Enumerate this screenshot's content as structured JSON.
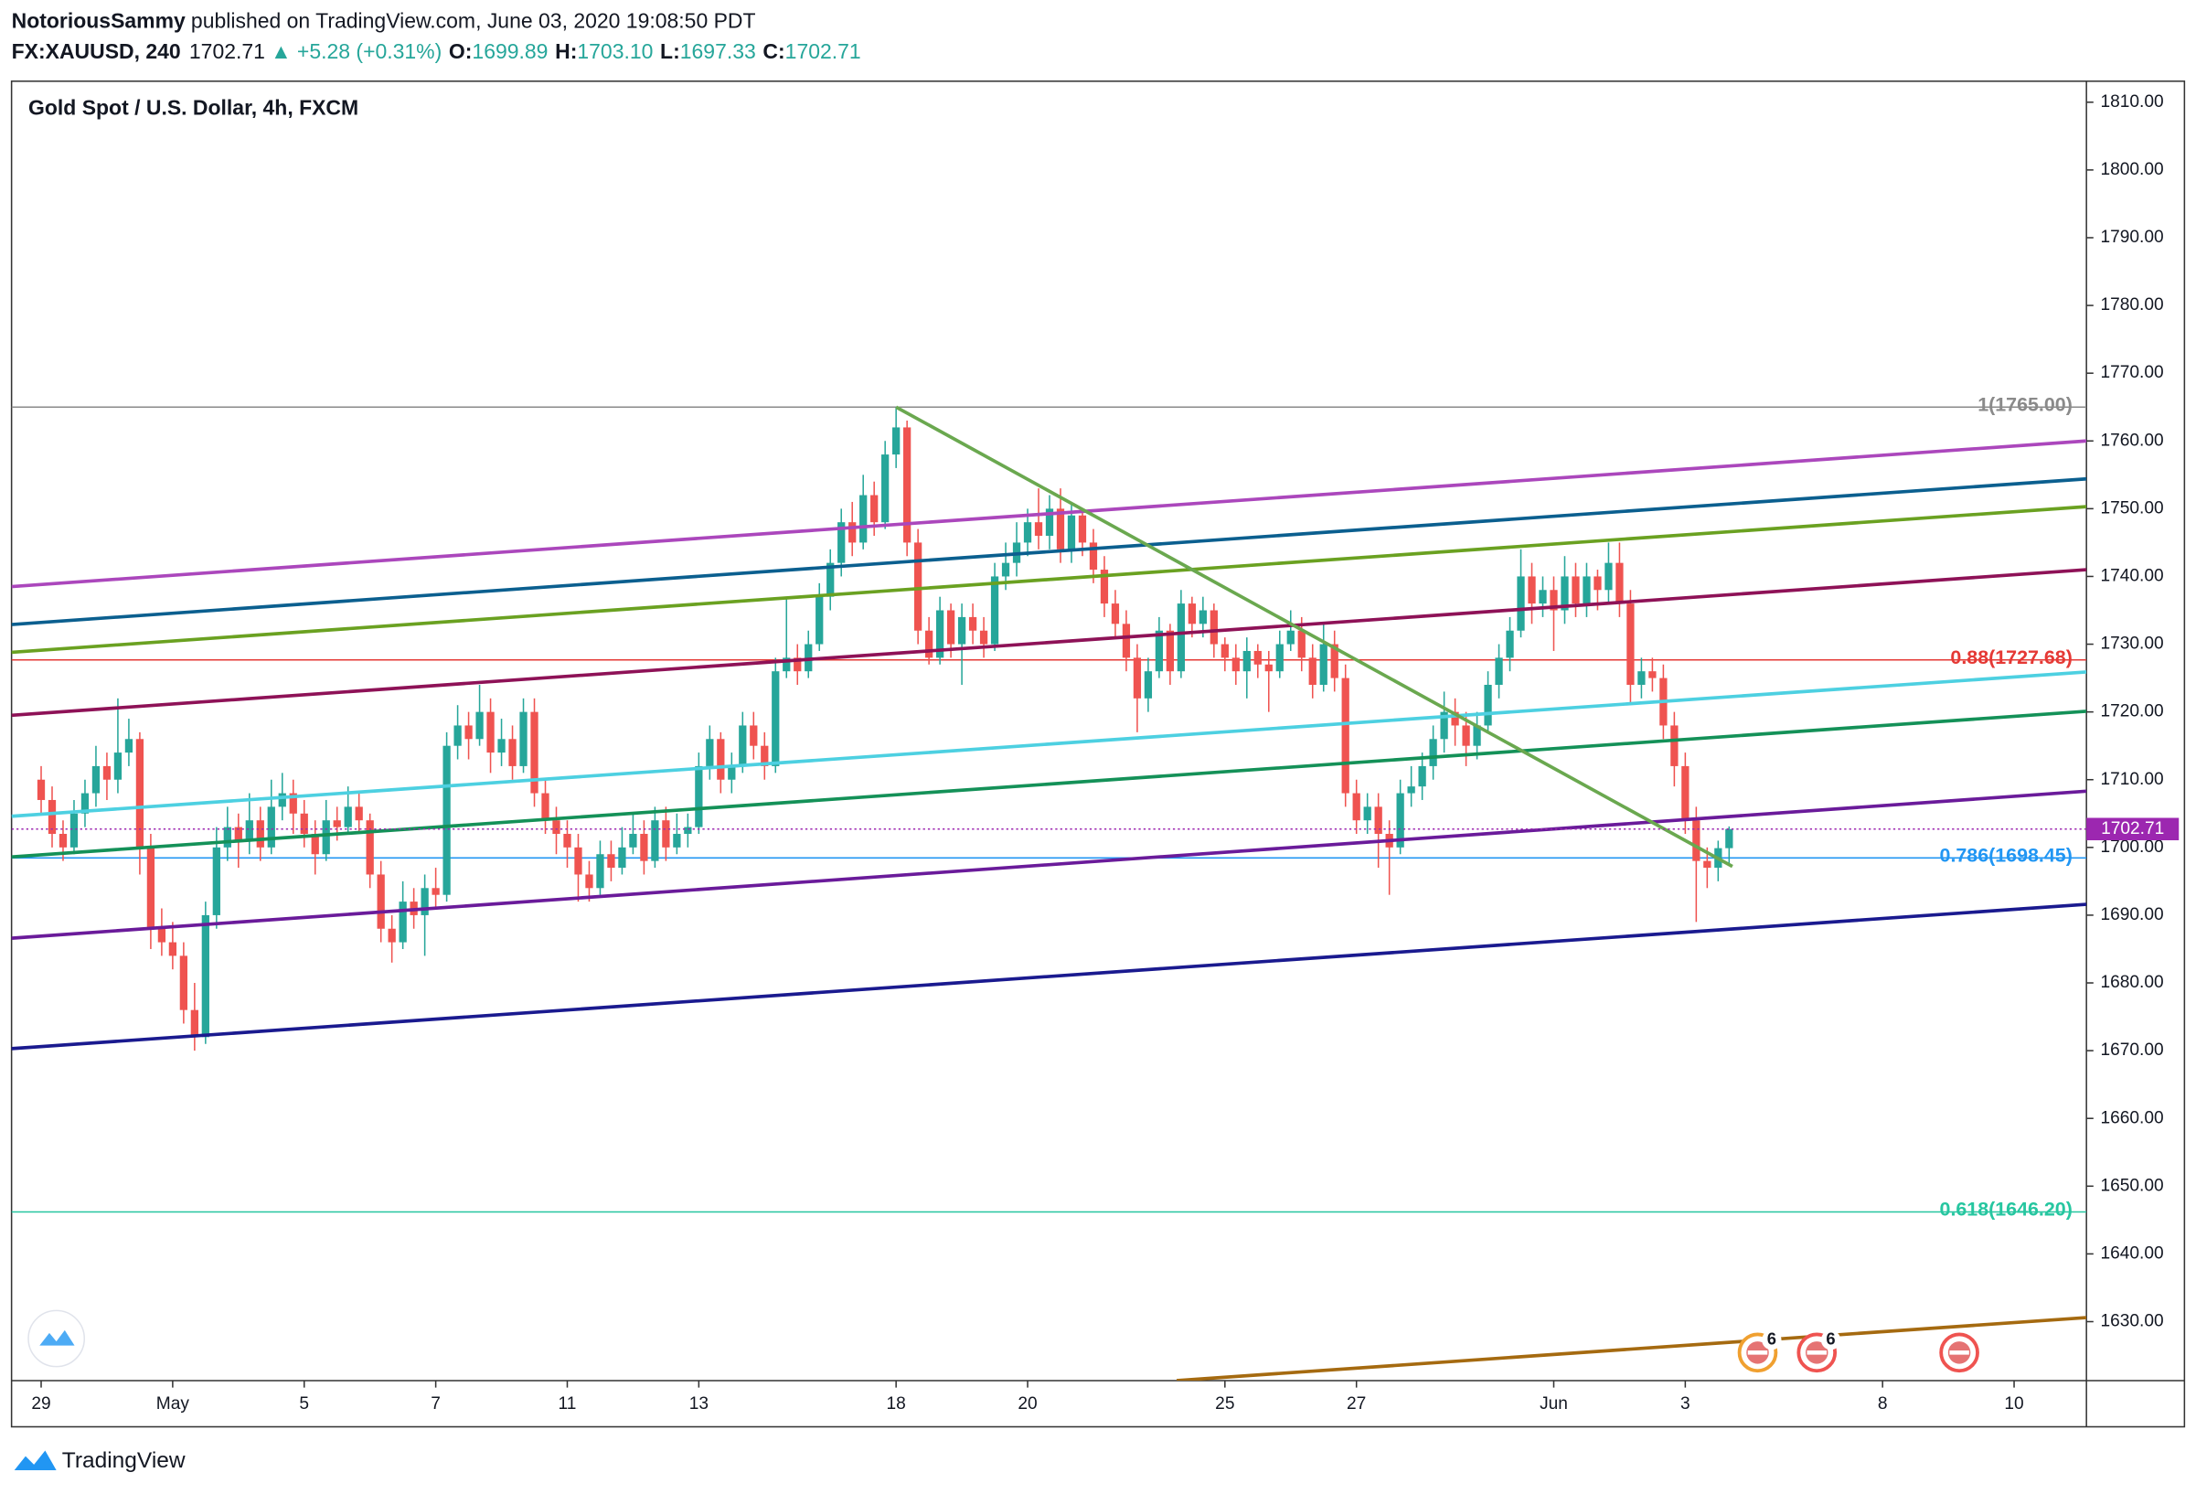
{
  "header": {
    "author": "NotoriousSammy",
    "published": "published on TradingView.com, June 03, 2020 19:08:50 PDT",
    "symbol": "FX:XAUUSD, 240",
    "last": "1702.71",
    "arrow": "▲",
    "change": "+5.28 (+0.31%)",
    "ohlc": [
      {
        "key": "O:",
        "value": "1699.89"
      },
      {
        "key": "H:",
        "value": "1703.10"
      },
      {
        "key": "L:",
        "value": "1697.33"
      },
      {
        "key": "C:",
        "value": "1702.71"
      }
    ]
  },
  "footer": {
    "brand": "TradingView"
  },
  "chart_data": {
    "type": "candlestick",
    "title": "Gold Spot / U.S. Dollar, 4h, FXCM",
    "up_color": "#26a69a",
    "down_color": "#ef5350",
    "grid": false,
    "xlim": [
      -2.7,
      186.6
    ],
    "ylim": [
      1621.3,
      1813.1
    ],
    "xticks": [
      {
        "value": 0,
        "label": "29"
      },
      {
        "value": 12,
        "label": "May"
      },
      {
        "value": 24,
        "label": "5"
      },
      {
        "value": 36,
        "label": "7"
      },
      {
        "value": 48,
        "label": "11"
      },
      {
        "value": 60,
        "label": "13"
      },
      {
        "value": 78,
        "label": "18"
      },
      {
        "value": 90,
        "label": "20"
      },
      {
        "value": 108,
        "label": "25"
      },
      {
        "value": 120,
        "label": "27"
      },
      {
        "value": 138,
        "label": "Jun"
      },
      {
        "value": 150,
        "label": "3"
      },
      {
        "value": 168,
        "label": "8"
      },
      {
        "value": 180,
        "label": "10"
      }
    ],
    "yticks": [
      {
        "value": 1630,
        "label": "1630.00"
      },
      {
        "value": 1640,
        "label": "1640.00"
      },
      {
        "value": 1650,
        "label": "1650.00"
      },
      {
        "value": 1660,
        "label": "1660.00"
      },
      {
        "value": 1670,
        "label": "1670.00"
      },
      {
        "value": 1680,
        "label": "1680.00"
      },
      {
        "value": 1690,
        "label": "1690.00"
      },
      {
        "value": 1700,
        "label": "1700.00"
      },
      {
        "value": 1710,
        "label": "1710.00"
      },
      {
        "value": 1720,
        "label": "1720.00"
      },
      {
        "value": 1730,
        "label": "1730.00"
      },
      {
        "value": 1740,
        "label": "1740.00"
      },
      {
        "value": 1750,
        "label": "1750.00"
      },
      {
        "value": 1760,
        "label": "1760.00"
      },
      {
        "value": 1770,
        "label": "1770.00"
      },
      {
        "value": 1780,
        "label": "1780.00"
      },
      {
        "value": 1790,
        "label": "1790.00"
      },
      {
        "value": 1800,
        "label": "1800.00"
      },
      {
        "value": 1810,
        "label": "1810.00"
      }
    ],
    "current_price": {
      "value": 1702.71,
      "color": "#9c27b0"
    },
    "candles": [
      [
        1710,
        1712,
        1705,
        1707
      ],
      [
        1707,
        1709,
        1700,
        1702
      ],
      [
        1702,
        1704,
        1698,
        1700
      ],
      [
        1700,
        1707,
        1699,
        1705
      ],
      [
        1705,
        1710,
        1703,
        1708
      ],
      [
        1708,
        1715,
        1706,
        1712
      ],
      [
        1712,
        1714,
        1707,
        1710
      ],
      [
        1710,
        1722,
        1708,
        1714
      ],
      [
        1714,
        1719,
        1712,
        1716
      ],
      [
        1716,
        1717,
        1696,
        1700
      ],
      [
        1700,
        1702,
        1685,
        1688
      ],
      [
        1688,
        1691,
        1684,
        1686
      ],
      [
        1686,
        1689,
        1682,
        1684
      ],
      [
        1684,
        1686,
        1674,
        1676
      ],
      [
        1676,
        1680,
        1670,
        1672
      ],
      [
        1672,
        1692,
        1671,
        1690
      ],
      [
        1690,
        1703,
        1688,
        1700
      ],
      [
        1700,
        1706,
        1698,
        1703
      ],
      [
        1703,
        1705,
        1697,
        1701
      ],
      [
        1701,
        1708,
        1699,
        1704
      ],
      [
        1704,
        1706,
        1698,
        1700
      ],
      [
        1700,
        1710,
        1699,
        1706
      ],
      [
        1706,
        1711,
        1704,
        1708
      ],
      [
        1708,
        1710,
        1702,
        1705
      ],
      [
        1705,
        1707,
        1700,
        1702
      ],
      [
        1702,
        1704,
        1696,
        1699
      ],
      [
        1699,
        1707,
        1698,
        1704
      ],
      [
        1704,
        1706,
        1701,
        1703
      ],
      [
        1703,
        1709,
        1702,
        1706
      ],
      [
        1706,
        1708,
        1702,
        1704
      ],
      [
        1704,
        1705,
        1694,
        1696
      ],
      [
        1696,
        1698,
        1686,
        1688
      ],
      [
        1688,
        1690,
        1683,
        1686
      ],
      [
        1686,
        1695,
        1685,
        1692
      ],
      [
        1692,
        1694,
        1688,
        1690
      ],
      [
        1690,
        1696,
        1684,
        1694
      ],
      [
        1694,
        1697,
        1691,
        1693
      ],
      [
        1693,
        1717,
        1692,
        1715
      ],
      [
        1715,
        1721,
        1713,
        1718
      ],
      [
        1718,
        1720,
        1713,
        1716
      ],
      [
        1716,
        1724,
        1715,
        1720
      ],
      [
        1720,
        1722,
        1711,
        1714
      ],
      [
        1714,
        1719,
        1712,
        1716
      ],
      [
        1716,
        1718,
        1710,
        1712
      ],
      [
        1712,
        1722,
        1711,
        1720
      ],
      [
        1720,
        1722,
        1706,
        1708
      ],
      [
        1708,
        1710,
        1702,
        1704
      ],
      [
        1704,
        1706,
        1699,
        1702
      ],
      [
        1702,
        1704,
        1697,
        1700
      ],
      [
        1700,
        1702,
        1692,
        1696
      ],
      [
        1696,
        1698,
        1692,
        1694
      ],
      [
        1694,
        1701,
        1693,
        1699
      ],
      [
        1699,
        1701,
        1695,
        1697
      ],
      [
        1697,
        1703,
        1696,
        1700
      ],
      [
        1700,
        1705,
        1699,
        1702
      ],
      [
        1702,
        1704,
        1696,
        1698
      ],
      [
        1698,
        1706,
        1697,
        1704
      ],
      [
        1704,
        1706,
        1698,
        1700
      ],
      [
        1700,
        1705,
        1699,
        1702
      ],
      [
        1702,
        1705,
        1700,
        1703
      ],
      [
        1703,
        1714,
        1702,
        1712
      ],
      [
        1712,
        1718,
        1710,
        1716
      ],
      [
        1716,
        1717,
        1708,
        1710
      ],
      [
        1710,
        1714,
        1708,
        1712
      ],
      [
        1712,
        1720,
        1711,
        1718
      ],
      [
        1718,
        1720,
        1713,
        1715
      ],
      [
        1715,
        1717,
        1710,
        1712
      ],
      [
        1712,
        1728,
        1711,
        1726
      ],
      [
        1726,
        1737,
        1725,
        1728
      ],
      [
        1728,
        1730,
        1724,
        1726
      ],
      [
        1726,
        1732,
        1725,
        1730
      ],
      [
        1730,
        1739,
        1729,
        1737
      ],
      [
        1737,
        1744,
        1735,
        1742
      ],
      [
        1742,
        1750,
        1740,
        1748
      ],
      [
        1748,
        1751,
        1743,
        1745
      ],
      [
        1745,
        1755,
        1744,
        1752
      ],
      [
        1752,
        1754,
        1746,
        1748
      ],
      [
        1748,
        1760,
        1747,
        1758
      ],
      [
        1758,
        1765,
        1756,
        1762
      ],
      [
        1762,
        1763,
        1743,
        1745
      ],
      [
        1745,
        1747,
        1730,
        1732
      ],
      [
        1732,
        1734,
        1727,
        1728
      ],
      [
        1728,
        1737,
        1727,
        1735
      ],
      [
        1735,
        1736,
        1728,
        1730
      ],
      [
        1730,
        1736,
        1724,
        1734
      ],
      [
        1734,
        1736,
        1730,
        1732
      ],
      [
        1732,
        1734,
        1728,
        1730
      ],
      [
        1730,
        1742,
        1729,
        1740
      ],
      [
        1740,
        1745,
        1738,
        1742
      ],
      [
        1742,
        1748,
        1740,
        1745
      ],
      [
        1745,
        1750,
        1743,
        1748
      ],
      [
        1748,
        1753,
        1744,
        1746
      ],
      [
        1746,
        1752,
        1744,
        1750
      ],
      [
        1750,
        1753,
        1742,
        1744
      ],
      [
        1744,
        1751,
        1742,
        1749
      ],
      [
        1749,
        1750,
        1743,
        1745
      ],
      [
        1745,
        1747,
        1739,
        1741
      ],
      [
        1741,
        1743,
        1734,
        1736
      ],
      [
        1736,
        1738,
        1731,
        1733
      ],
      [
        1733,
        1735,
        1726,
        1728
      ],
      [
        1728,
        1730,
        1717,
        1722
      ],
      [
        1722,
        1728,
        1720,
        1726
      ],
      [
        1726,
        1734,
        1725,
        1732
      ],
      [
        1732,
        1733,
        1724,
        1726
      ],
      [
        1726,
        1738,
        1725,
        1736
      ],
      [
        1736,
        1737,
        1731,
        1733
      ],
      [
        1733,
        1737,
        1731,
        1735
      ],
      [
        1735,
        1736,
        1728,
        1730
      ],
      [
        1730,
        1731,
        1726,
        1728
      ],
      [
        1728,
        1730,
        1724,
        1726
      ],
      [
        1726,
        1731,
        1722,
        1729
      ],
      [
        1729,
        1730,
        1725,
        1727
      ],
      [
        1727,
        1729,
        1720,
        1726
      ],
      [
        1726,
        1732,
        1725,
        1730
      ],
      [
        1730,
        1735,
        1729,
        1732
      ],
      [
        1732,
        1734,
        1726,
        1728
      ],
      [
        1728,
        1730,
        1722,
        1724
      ],
      [
        1724,
        1733,
        1723,
        1730
      ],
      [
        1730,
        1732,
        1723,
        1725
      ],
      [
        1725,
        1727,
        1706,
        1708
      ],
      [
        1708,
        1710,
        1702,
        1704
      ],
      [
        1704,
        1708,
        1702,
        1706
      ],
      [
        1706,
        1708,
        1697,
        1702
      ],
      [
        1702,
        1704,
        1693,
        1700
      ],
      [
        1700,
        1710,
        1699,
        1708
      ],
      [
        1708,
        1712,
        1706,
        1709
      ],
      [
        1709,
        1714,
        1707,
        1712
      ],
      [
        1712,
        1718,
        1710,
        1716
      ],
      [
        1716,
        1723,
        1714,
        1720
      ],
      [
        1720,
        1722,
        1715,
        1718
      ],
      [
        1718,
        1720,
        1712,
        1715
      ],
      [
        1715,
        1720,
        1713,
        1718
      ],
      [
        1718,
        1726,
        1717,
        1724
      ],
      [
        1724,
        1730,
        1722,
        1728
      ],
      [
        1728,
        1734,
        1726,
        1732
      ],
      [
        1732,
        1744,
        1731,
        1740
      ],
      [
        1740,
        1742,
        1733,
        1736
      ],
      [
        1736,
        1740,
        1734,
        1738
      ],
      [
        1738,
        1740,
        1729,
        1735
      ],
      [
        1735,
        1743,
        1733,
        1740
      ],
      [
        1740,
        1742,
        1734,
        1736
      ],
      [
        1736,
        1742,
        1734,
        1740
      ],
      [
        1740,
        1741,
        1735,
        1738
      ],
      [
        1738,
        1745,
        1736,
        1742
      ],
      [
        1742,
        1745,
        1734,
        1736
      ],
      [
        1736,
        1738,
        1721,
        1724
      ],
      [
        1724,
        1728,
        1722,
        1726
      ],
      [
        1726,
        1728,
        1723,
        1725
      ],
      [
        1725,
        1727,
        1716,
        1718
      ],
      [
        1718,
        1720,
        1709,
        1712
      ],
      [
        1712,
        1714,
        1702,
        1704
      ],
      [
        1704,
        1706,
        1689,
        1698
      ],
      [
        1698,
        1700,
        1694,
        1697
      ],
      [
        1697,
        1701,
        1695,
        1699.89
      ],
      [
        1699.89,
        1703.1,
        1697.33,
        1702.71
      ]
    ],
    "levels": [
      {
        "value": 1765,
        "label": "1(1765.00)",
        "color": "#8a8a8a"
      },
      {
        "value": 1727.68,
        "label": "0.88(1727.68)",
        "color": "#e53935"
      },
      {
        "value": 1698.45,
        "label": "0.786(1698.45)",
        "color": "#2196f3"
      },
      {
        "value": 1646.2,
        "label": "0.618(1646.20)",
        "color": "#26c6a0"
      }
    ],
    "lines": [
      {
        "color": "#ab47bc",
        "points": [
          [
            -2.7,
            1738.5
          ],
          [
            186.6,
            1760.0
          ]
        ]
      },
      {
        "color": "#0b5f8f",
        "points": [
          [
            -2.7,
            1732.9
          ],
          [
            186.6,
            1754.4
          ]
        ]
      },
      {
        "color": "#6aa121",
        "points": [
          [
            -2.7,
            1728.8
          ],
          [
            186.6,
            1750.3
          ]
        ]
      },
      {
        "color": "#8e1257",
        "points": [
          [
            -2.7,
            1719.5
          ],
          [
            186.6,
            1741.0
          ]
        ]
      },
      {
        "color": "#4dd0e1",
        "points": [
          [
            -2.7,
            1704.6
          ],
          [
            186.6,
            1725.9
          ]
        ]
      },
      {
        "color": "#149158",
        "points": [
          [
            -2.7,
            1698.6
          ],
          [
            186.6,
            1720.1
          ]
        ]
      },
      {
        "color": "#6a1b9a",
        "points": [
          [
            -2.7,
            1686.6
          ],
          [
            186.6,
            1708.3
          ]
        ]
      },
      {
        "color": "#1a1a8f",
        "points": [
          [
            -2.7,
            1670.3
          ],
          [
            186.6,
            1691.6
          ]
        ]
      },
      {
        "color": "#a56a10",
        "points": [
          [
            103.6,
            1621.3
          ],
          [
            186.6,
            1630.6
          ]
        ]
      },
      {
        "color": "#6aa84f",
        "points": [
          [
            78,
            1765
          ],
          [
            154.3,
            1697.2
          ]
        ]
      }
    ],
    "events": [
      {
        "x": 156.6,
        "badge": "6",
        "color": "#f0a030"
      },
      {
        "x": 162,
        "badge": "6",
        "color": "#ef5350"
      },
      {
        "x": 175,
        "color": "#ef5350"
      }
    ]
  }
}
